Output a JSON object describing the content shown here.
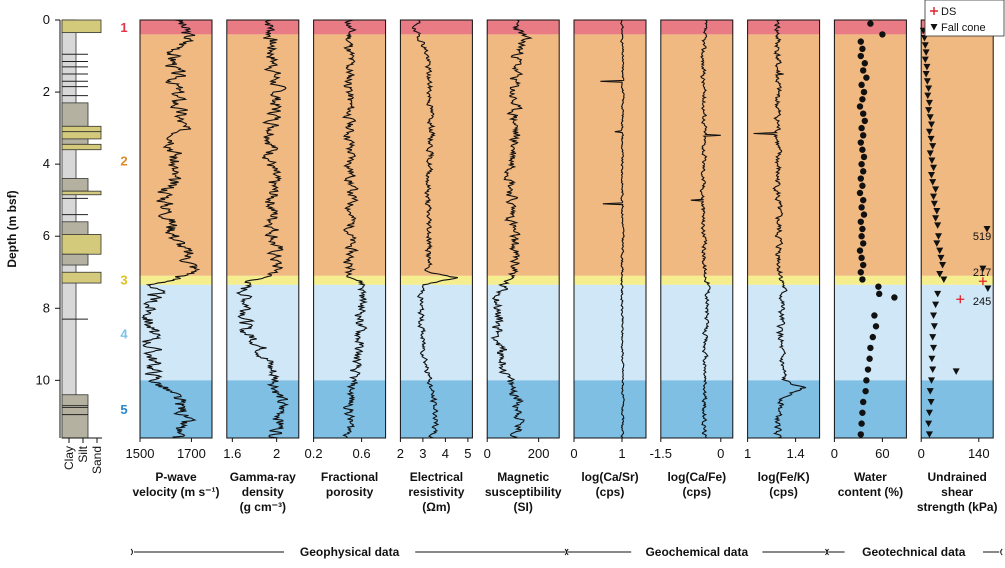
{
  "chart_data": {
    "type": "line",
    "y_axis": {
      "label": "Depth (m bsf)",
      "range": [
        0,
        11.6
      ],
      "ticks": [
        0,
        2,
        4,
        6,
        8,
        10
      ],
      "inverted": true
    },
    "units": [
      {
        "id": "1",
        "top": 0.0,
        "bottom": 0.4,
        "color": "#e87b83"
      },
      {
        "id": "2",
        "top": 0.4,
        "bottom": 7.1,
        "color": "#f1b982"
      },
      {
        "id": "3",
        "top": 7.1,
        "bottom": 7.35,
        "color": "#f5ee8e"
      },
      {
        "id": "4",
        "top": 7.35,
        "bottom": 10.0,
        "color": "#cfe7f6"
      },
      {
        "id": "5",
        "top": 10.0,
        "bottom": 11.6,
        "color": "#7fbfe3"
      }
    ],
    "unit_label_depths": [
      0.2,
      3.9,
      7.2,
      8.7,
      10.8
    ],
    "unit_label_colors": [
      "#e0344a",
      "#e08a2e",
      "#e0c21e",
      "#7cc3ea",
      "#2a86c9"
    ],
    "lithology": {
      "x_labels": [
        "Clay",
        "Silt",
        "Sand"
      ],
      "layers": [
        {
          "top": 0.0,
          "bottom": 0.35,
          "grain": "sand"
        },
        {
          "top": 0.35,
          "bottom": 2.3,
          "grain": "clay"
        },
        {
          "top": 2.3,
          "bottom": 2.95,
          "grain": "silt"
        },
        {
          "top": 2.95,
          "bottom": 3.1,
          "grain": "sand"
        },
        {
          "top": 3.1,
          "bottom": 3.3,
          "grain": "sand"
        },
        {
          "top": 3.3,
          "bottom": 3.45,
          "grain": "silt"
        },
        {
          "top": 3.45,
          "bottom": 3.6,
          "grain": "sand"
        },
        {
          "top": 3.6,
          "bottom": 4.4,
          "grain": "clay"
        },
        {
          "top": 4.4,
          "bottom": 4.75,
          "grain": "silt"
        },
        {
          "top": 4.75,
          "bottom": 4.85,
          "grain": "sand"
        },
        {
          "top": 4.85,
          "bottom": 5.6,
          "grain": "clay"
        },
        {
          "top": 5.6,
          "bottom": 5.95,
          "grain": "silt"
        },
        {
          "top": 5.95,
          "bottom": 6.5,
          "grain": "sand"
        },
        {
          "top": 6.5,
          "bottom": 6.8,
          "grain": "silt"
        },
        {
          "top": 6.8,
          "bottom": 7.0,
          "grain": "clay"
        },
        {
          "top": 7.0,
          "bottom": 7.3,
          "grain": "sand"
        },
        {
          "top": 7.3,
          "bottom": 10.4,
          "grain": "clay"
        },
        {
          "top": 10.4,
          "bottom": 10.7,
          "grain": "silt"
        },
        {
          "top": 10.7,
          "bottom": 11.6,
          "grain": "silt"
        }
      ],
      "thin_beds": [
        0.95,
        1.15,
        1.3,
        1.5,
        1.7,
        1.85,
        2.1,
        4.95,
        5.4,
        8.3,
        10.75,
        10.95
      ]
    },
    "tracks": [
      {
        "name": "p-wave",
        "xlabel": [
          "P-wave",
          "velocity (m s⁻¹)"
        ],
        "xlim": [
          1500,
          1780
        ],
        "ticks": [
          1500,
          1700
        ],
        "profile": [
          [
            0,
            1650
          ],
          [
            0.5,
            1690
          ],
          [
            1,
            1630
          ],
          [
            2,
            1640
          ],
          [
            3,
            1660
          ],
          [
            4,
            1630
          ],
          [
            5,
            1600
          ],
          [
            6,
            1640
          ],
          [
            7,
            1720
          ],
          [
            7.35,
            1560
          ],
          [
            8,
            1540
          ],
          [
            9,
            1545
          ],
          [
            10,
            1560
          ],
          [
            10.5,
            1640
          ],
          [
            11,
            1680
          ],
          [
            11.6,
            1620
          ]
        ],
        "noise": 30,
        "seed": 3
      },
      {
        "name": "gamma-density",
        "xlabel": [
          "Gamma-ray",
          "density",
          "(g cm⁻³)"
        ],
        "xlim": [
          1.55,
          2.2
        ],
        "ticks": [
          1.6,
          2
        ],
        "tick_labels": [
          "1.6",
          "2"
        ],
        "profile": [
          [
            0,
            1.95
          ],
          [
            0.5,
            1.95
          ],
          [
            2,
            2.0
          ],
          [
            4,
            1.95
          ],
          [
            6,
            1.98
          ],
          [
            7,
            2.0
          ],
          [
            7.35,
            1.7
          ],
          [
            8,
            1.75
          ],
          [
            8.6,
            1.7
          ],
          [
            9,
            1.85
          ],
          [
            10,
            2.0
          ],
          [
            11,
            2.05
          ],
          [
            11.6,
            2.0
          ]
        ],
        "noise": 0.06,
        "seed": 7
      },
      {
        "name": "porosity",
        "xlabel": [
          "Fractional",
          "porosity"
        ],
        "xlim": [
          0.2,
          0.8
        ],
        "ticks": [
          0.2,
          0.6
        ],
        "tick_labels": [
          "0.2",
          "0.6"
        ],
        "profile": [
          [
            0,
            0.5
          ],
          [
            1,
            0.5
          ],
          [
            3,
            0.5
          ],
          [
            5,
            0.52
          ],
          [
            7,
            0.5
          ],
          [
            7.35,
            0.62
          ],
          [
            8,
            0.6
          ],
          [
            9,
            0.58
          ],
          [
            10,
            0.52
          ],
          [
            11,
            0.5
          ],
          [
            11.6,
            0.5
          ]
        ],
        "noise": 0.04,
        "seed": 11
      },
      {
        "name": "resistivity",
        "xlabel": [
          "Electrical",
          "resistivity",
          "(Ωm)"
        ],
        "xlim": [
          2,
          5.2
        ],
        "ticks": [
          2,
          3,
          4,
          5
        ],
        "profile": [
          [
            0,
            2.8
          ],
          [
            0.3,
            2.6
          ],
          [
            0.6,
            3.0
          ],
          [
            1,
            3.2
          ],
          [
            2,
            3.3
          ],
          [
            3,
            3.4
          ],
          [
            4,
            3.3
          ],
          [
            5,
            3.2
          ],
          [
            6,
            3.3
          ],
          [
            7,
            3.2
          ],
          [
            7.15,
            4.5
          ],
          [
            7.35,
            3.0
          ],
          [
            8,
            2.9
          ],
          [
            9,
            3.0
          ],
          [
            10,
            3.3
          ],
          [
            11,
            3.6
          ],
          [
            11.6,
            3.4
          ]
        ],
        "noise": 0.12,
        "seed": 19
      },
      {
        "name": "magnetic",
        "xlabel": [
          "Magnetic",
          "susceptibility",
          "(SI)"
        ],
        "xlim": [
          0,
          280
        ],
        "ticks": [
          0,
          200
        ],
        "profile": [
          [
            0,
            100
          ],
          [
            0.5,
            140
          ],
          [
            1,
            120
          ],
          [
            2,
            100
          ],
          [
            3,
            110
          ],
          [
            4,
            100
          ],
          [
            5,
            95
          ],
          [
            6,
            100
          ],
          [
            7,
            110
          ],
          [
            7.35,
            60
          ],
          [
            8,
            40
          ],
          [
            9,
            45
          ],
          [
            10,
            80
          ],
          [
            10.5,
            120
          ],
          [
            11,
            130
          ],
          [
            11.6,
            110
          ]
        ],
        "noise": 20,
        "seed": 23
      },
      {
        "name": "ca-sr",
        "xlabel": [
          "log(Ca/Sr)",
          "(cps)"
        ],
        "xlim": [
          0,
          1.5
        ],
        "ticks": [
          0,
          1
        ],
        "profile": [
          [
            0,
            1.0
          ],
          [
            2,
            1.02
          ],
          [
            4,
            1.0
          ],
          [
            6,
            1.02
          ],
          [
            7,
            1.0
          ],
          [
            8,
            1.0
          ],
          [
            10,
            1.02
          ],
          [
            11.6,
            1.0
          ]
        ],
        "noise": 0.02,
        "seed": 31,
        "spikes": [
          [
            1.7,
            0.55
          ],
          [
            5.1,
            0.6
          ],
          [
            3.1,
            0.85
          ]
        ]
      },
      {
        "name": "ca-fe",
        "xlabel": [
          "log(Ca/Fe)",
          "(cps)"
        ],
        "xlim": [
          -1.5,
          0.3
        ],
        "ticks": [
          -1.5,
          0
        ],
        "tick_labels": [
          "-1.5",
          "0"
        ],
        "profile": [
          [
            0,
            -0.4
          ],
          [
            1,
            -0.45
          ],
          [
            3,
            -0.4
          ],
          [
            5,
            -0.45
          ],
          [
            7,
            -0.4
          ],
          [
            7.35,
            -0.3
          ],
          [
            8,
            -0.35
          ],
          [
            9,
            -0.4
          ],
          [
            10,
            -0.4
          ],
          [
            11,
            -0.42
          ],
          [
            11.6,
            -0.4
          ]
        ],
        "noise": 0.05,
        "seed": 37,
        "spikes": [
          [
            3.2,
            0.0
          ],
          [
            5.0,
            -0.75
          ]
        ]
      },
      {
        "name": "fe-k",
        "xlabel": [
          "log(Fe/K)",
          "(cps)"
        ],
        "xlim": [
          1.0,
          1.6
        ],
        "ticks": [
          1,
          1.4
        ],
        "tick_labels": [
          "1",
          "1.4"
        ],
        "profile": [
          [
            0,
            1.25
          ],
          [
            1,
            1.25
          ],
          [
            3,
            1.25
          ],
          [
            5,
            1.25
          ],
          [
            7,
            1.27
          ],
          [
            7.35,
            1.3
          ],
          [
            8,
            1.28
          ],
          [
            9,
            1.27
          ],
          [
            10,
            1.3
          ],
          [
            10.2,
            1.45
          ],
          [
            10.5,
            1.3
          ],
          [
            11,
            1.25
          ],
          [
            11.6,
            1.25
          ]
        ],
        "noise": 0.025,
        "seed": 41,
        "spikes": [
          [
            3.15,
            1.05
          ],
          [
            1.5,
            1.3
          ]
        ]
      },
      {
        "name": "water",
        "xlabel": [
          "Water",
          "content (%)"
        ],
        "xlim": [
          0,
          90
        ],
        "ticks": [
          0,
          60
        ],
        "points": [
          [
            0.1,
            45
          ],
          [
            0.4,
            60
          ],
          [
            0.6,
            33
          ],
          [
            0.8,
            35
          ],
          [
            1.0,
            33
          ],
          [
            1.2,
            38
          ],
          [
            1.4,
            36
          ],
          [
            1.6,
            40
          ],
          [
            1.8,
            34
          ],
          [
            2.0,
            37
          ],
          [
            2.2,
            35
          ],
          [
            2.4,
            32
          ],
          [
            2.6,
            36
          ],
          [
            2.8,
            38
          ],
          [
            3.0,
            34
          ],
          [
            3.2,
            36
          ],
          [
            3.4,
            33
          ],
          [
            3.6,
            35
          ],
          [
            3.8,
            37
          ],
          [
            4.0,
            34
          ],
          [
            4.2,
            36
          ],
          [
            4.4,
            33
          ],
          [
            4.6,
            35
          ],
          [
            4.8,
            32
          ],
          [
            5.0,
            36
          ],
          [
            5.2,
            34
          ],
          [
            5.4,
            37
          ],
          [
            5.6,
            33
          ],
          [
            5.8,
            35
          ],
          [
            6.0,
            34
          ],
          [
            6.2,
            36
          ],
          [
            6.4,
            32
          ],
          [
            6.6,
            34
          ],
          [
            6.8,
            36
          ],
          [
            7.0,
            33
          ],
          [
            7.2,
            35
          ],
          [
            7.4,
            55
          ],
          [
            7.6,
            56
          ],
          [
            7.7,
            75
          ],
          [
            8.2,
            50
          ],
          [
            8.5,
            52
          ],
          [
            8.8,
            48
          ],
          [
            9.1,
            45
          ],
          [
            9.4,
            44
          ],
          [
            9.7,
            42
          ],
          [
            10.0,
            40
          ],
          [
            10.3,
            39
          ],
          [
            10.6,
            36
          ],
          [
            10.9,
            35
          ],
          [
            11.2,
            34
          ],
          [
            11.5,
            33
          ]
        ]
      },
      {
        "name": "shear",
        "xlabel": [
          "Undrained",
          "shear",
          "strength (kPa)"
        ],
        "xlim": [
          0,
          175
        ],
        "ticks": [
          0,
          140
        ],
        "fall_cone": [
          [
            0.3,
            5
          ],
          [
            0.5,
            8
          ],
          [
            0.7,
            10
          ],
          [
            0.9,
            12
          ],
          [
            1.1,
            10
          ],
          [
            1.3,
            14
          ],
          [
            1.5,
            12
          ],
          [
            1.7,
            15
          ],
          [
            1.9,
            18
          ],
          [
            2.1,
            16
          ],
          [
            2.3,
            20
          ],
          [
            2.5,
            18
          ],
          [
            2.7,
            22
          ],
          [
            2.9,
            25
          ],
          [
            3.1,
            20
          ],
          [
            3.3,
            24
          ],
          [
            3.5,
            28
          ],
          [
            3.7,
            22
          ],
          [
            3.9,
            26
          ],
          [
            4.1,
            30
          ],
          [
            4.3,
            25
          ],
          [
            4.5,
            28
          ],
          [
            4.7,
            35
          ],
          [
            4.9,
            30
          ],
          [
            5.1,
            32
          ],
          [
            5.3,
            38
          ],
          [
            5.5,
            35
          ],
          [
            5.7,
            40
          ],
          [
            5.8,
            160
          ],
          [
            6.0,
            42
          ],
          [
            6.2,
            38
          ],
          [
            6.4,
            45
          ],
          [
            6.6,
            48
          ],
          [
            6.8,
            52
          ],
          [
            6.9,
            150
          ],
          [
            7.05,
            45
          ],
          [
            7.2,
            55
          ],
          [
            7.45,
            162
          ],
          [
            7.6,
            40
          ],
          [
            7.9,
            35
          ],
          [
            8.2,
            30
          ],
          [
            8.5,
            32
          ],
          [
            8.8,
            28
          ],
          [
            9.1,
            30
          ],
          [
            9.4,
            26
          ],
          [
            9.7,
            28
          ],
          [
            9.75,
            85
          ],
          [
            10.0,
            25
          ],
          [
            10.3,
            22
          ],
          [
            10.6,
            24
          ],
          [
            10.9,
            20
          ],
          [
            11.2,
            18
          ],
          [
            11.5,
            20
          ]
        ],
        "ds": [
          [
            7.25,
            150
          ],
          [
            7.75,
            95
          ]
        ],
        "annotations": [
          {
            "text": "519",
            "depth": 6.0
          },
          {
            "text": "217",
            "depth": 7.0
          },
          {
            "text": "245",
            "depth": 7.8
          }
        ],
        "legend": [
          "DS",
          "Fall cone"
        ]
      }
    ],
    "groups": [
      {
        "label": "Geophysical data",
        "from": 0,
        "to": 4
      },
      {
        "label": "Geochemical data",
        "from": 5,
        "to": 7
      },
      {
        "label": "Geotechnical data",
        "from": 8,
        "to": 9
      }
    ]
  }
}
